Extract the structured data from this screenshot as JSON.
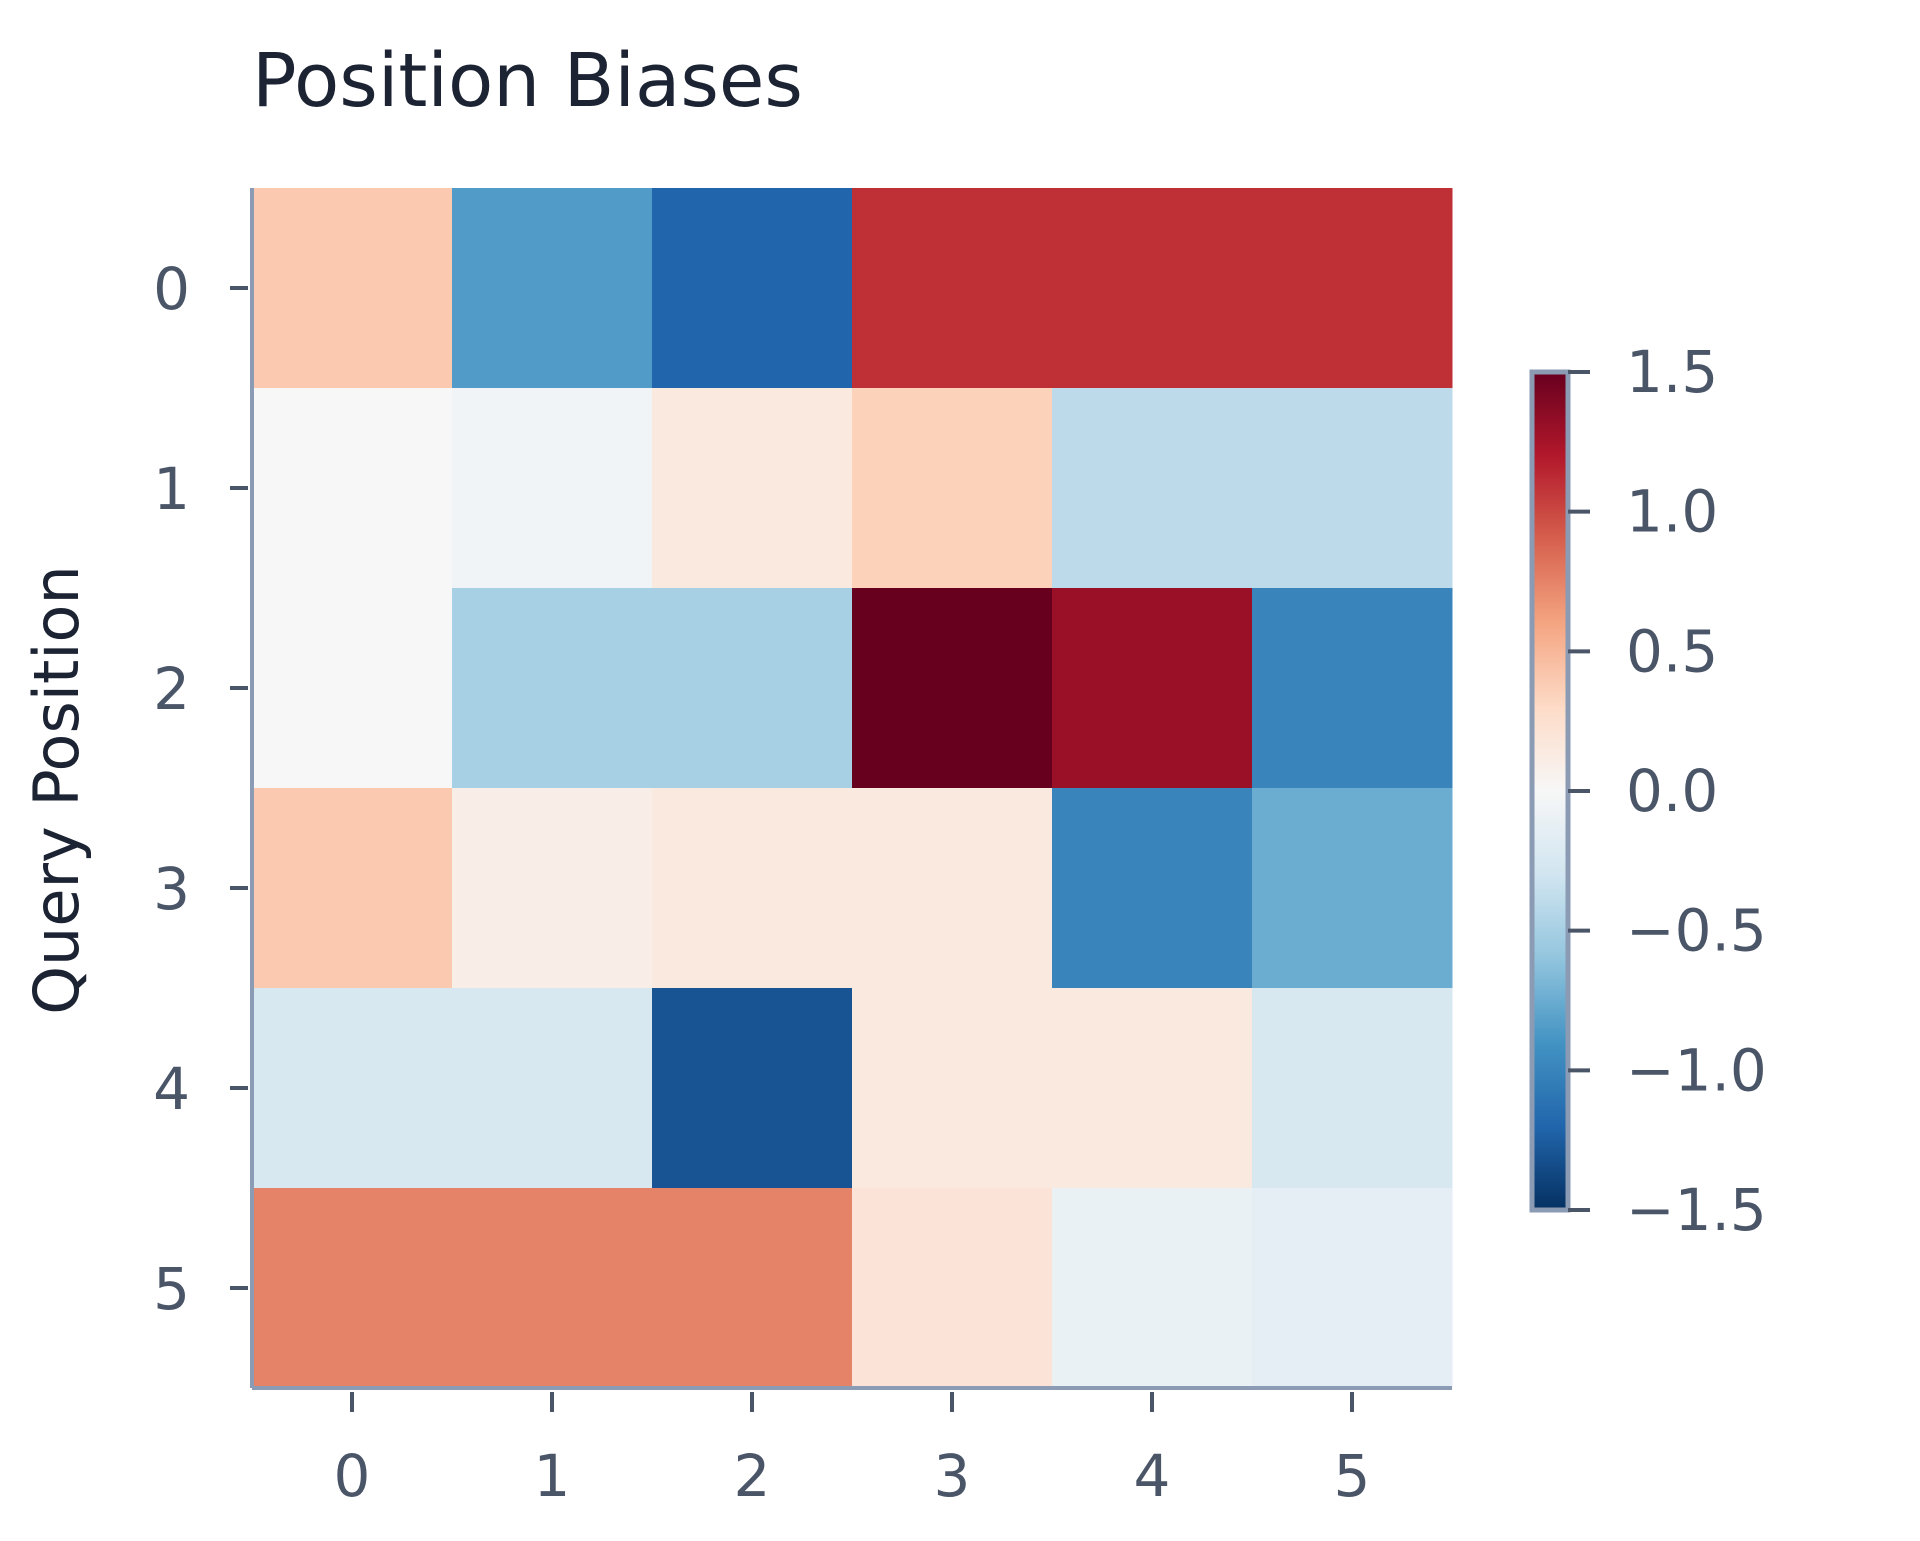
{
  "chart_data": {
    "type": "heatmap",
    "title": "Position Biases",
    "xlabel": "",
    "ylabel": "Query Position",
    "x_categories": [
      "0",
      "1",
      "2",
      "3",
      "4",
      "5"
    ],
    "y_categories": [
      "0",
      "1",
      "2",
      "3",
      "4",
      "5"
    ],
    "values": [
      [
        0.4,
        -0.85,
        -1.2,
        1.1,
        1.1,
        1.1
      ],
      [
        0.0,
        -0.05,
        0.15,
        0.35,
        -0.4,
        -0.4
      ],
      [
        0.0,
        -0.5,
        -0.5,
        1.5,
        1.3,
        -1.0
      ],
      [
        0.4,
        0.1,
        0.15,
        0.15,
        -1.0,
        -0.75
      ],
      [
        -0.25,
        -0.25,
        -1.3,
        0.15,
        0.15,
        -0.25
      ],
      [
        0.75,
        0.75,
        0.75,
        0.2,
        -0.1,
        -0.15
      ]
    ],
    "colorbar": {
      "min": -1.5,
      "max": 1.5,
      "ticks": [
        "1.5",
        "1.0",
        "0.5",
        "0.0",
        "−0.5",
        "−1.0",
        "−1.5"
      ],
      "colormap": "RdBu_r"
    },
    "grid": false
  },
  "colors": {
    "text_dark": "#1c2333",
    "text_muted": "#4a5568",
    "axis": "#8a9bb3"
  }
}
